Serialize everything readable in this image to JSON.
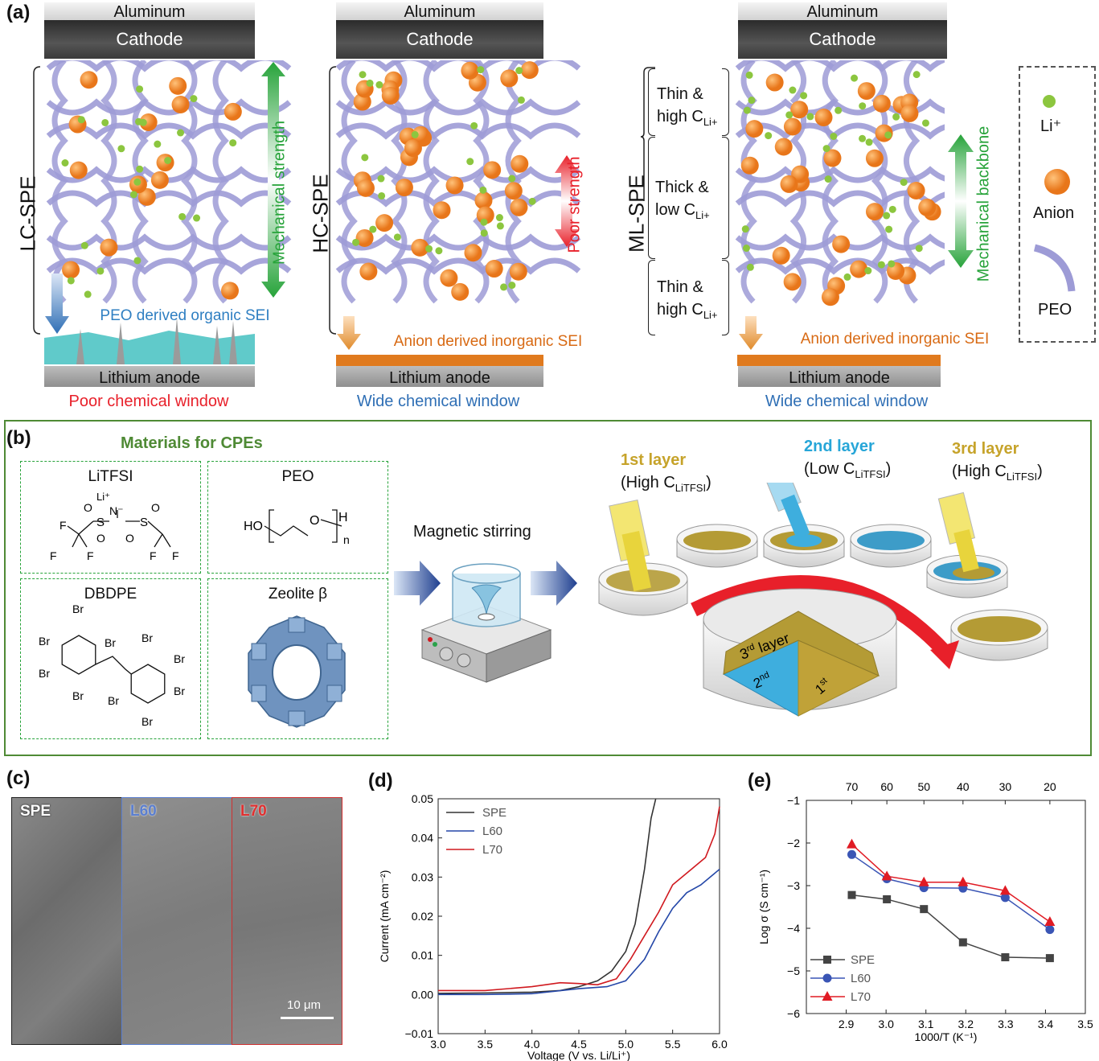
{
  "panel_a": {
    "label": "(a)",
    "columns": [
      {
        "aluminum": "Aluminum",
        "cathode": "Cathode",
        "name": "LC-SPE",
        "arrow_text": "Mechanical strength",
        "sei": "PEO derived organic SEI",
        "anode": "Lithium anode",
        "window": "Poor chemical window"
      },
      {
        "aluminum": "Aluminum",
        "cathode": "Cathode",
        "name": "HC-SPE",
        "arrow_text": "Poor strength",
        "sei": "Anion derived inorganic SEI",
        "anode": "Lithium anode",
        "window": "Wide chemical window"
      },
      {
        "aluminum": "Aluminum",
        "cathode": "Cathode",
        "name": "ML-SPE",
        "arrow_text": "Mechanical backbone",
        "sei": "Anion derived inorganic SEI",
        "anode": "Lithium anode",
        "window": "Wide chemical window",
        "layers": [
          {
            "l1": "Thin &",
            "l2": "high C",
            "sub": "Li+"
          },
          {
            "l1": "Thick &",
            "l2": "low C",
            "sub": "Li+"
          },
          {
            "l1": "Thin &",
            "l2": "high C",
            "sub": "Li+"
          }
        ]
      }
    ],
    "legend": {
      "li": "Li⁺",
      "anion": "Anion",
      "peo": "PEO"
    },
    "colors": {
      "li": "#8cc63f",
      "anion": "#f08a24",
      "peo": "#9d9bd6",
      "green": "#27a33a",
      "red": "#e8202a",
      "blue": "#2f6fb5",
      "orange": "#d86a14"
    }
  },
  "panel_b": {
    "label": "(b)",
    "materials_title": "Materials for CPEs",
    "materials": {
      "litfsi": {
        "name": "LiTFSI",
        "li": "Li⁺",
        "n": "N⁻",
        "s": "S",
        "o": "O",
        "f": "F"
      },
      "peo": {
        "name": "PEO",
        "ho": "HO",
        "o": "O",
        "h": "H",
        "n": "n"
      },
      "dbdpe": {
        "name": "DBDPE",
        "br": "Br"
      },
      "zeolite": {
        "name": "Zeolite β"
      }
    },
    "stirring": "Magnetic stirring",
    "layers": [
      {
        "title": "1st layer",
        "desc1": "(High C",
        "desc_sub": "LiTFSI",
        "desc2": ")"
      },
      {
        "title": "2nd layer",
        "desc1": "(Low C",
        "desc_sub": "LiTFSI",
        "desc2": ")"
      },
      {
        "title": "3rd layer",
        "desc1": "(High C",
        "desc_sub": "LiTFSI",
        "desc2": ")"
      }
    ],
    "dish_labels": {
      "third": "3",
      "third_sup": "rd",
      "third_rest": " layer",
      "second": "2",
      "second_sup": "nd",
      "first": "1",
      "first_sup": "st"
    }
  },
  "panel_c": {
    "label": "(c)",
    "tiles": [
      "SPE",
      "L60",
      "L70"
    ],
    "scale": "10 μm"
  },
  "chart_data": [
    {
      "panel": "(d)",
      "type": "line",
      "xlabel": "Voltage (V vs. Li/Li⁺)",
      "ylabel": "Current (mA cm⁻²)",
      "xlim": [
        3.0,
        6.0
      ],
      "ylim": [
        -0.01,
        0.05
      ],
      "xticks": [
        "3.0",
        "3.5",
        "4.0",
        "4.5",
        "5.0",
        "5.5",
        "6.0"
      ],
      "yticks": [
        "−0.01",
        "0.00",
        "0.01",
        "0.02",
        "0.03",
        "0.04",
        "0.05"
      ],
      "legend_position": "top-left",
      "series": [
        {
          "name": "SPE",
          "color": "#333333",
          "x": [
            3.0,
            3.5,
            4.0,
            4.3,
            4.5,
            4.7,
            4.85,
            5.0,
            5.1,
            5.2,
            5.27,
            5.32
          ],
          "y": [
            0.0003,
            0.0004,
            0.0006,
            0.001,
            0.002,
            0.0035,
            0.006,
            0.011,
            0.018,
            0.032,
            0.045,
            0.05
          ]
        },
        {
          "name": "L60",
          "color": "#2447a8",
          "x": [
            3.0,
            3.5,
            4.0,
            4.5,
            4.8,
            5.0,
            5.2,
            5.35,
            5.5,
            5.65,
            5.8,
            5.9,
            6.0
          ],
          "y": [
            0.0,
            0.0,
            0.0002,
            0.0015,
            0.002,
            0.0035,
            0.009,
            0.016,
            0.022,
            0.026,
            0.028,
            0.03,
            0.032
          ]
        },
        {
          "name": "L70",
          "color": "#d0191f",
          "x": [
            3.0,
            3.5,
            4.0,
            4.3,
            4.5,
            4.7,
            4.9,
            5.05,
            5.2,
            5.35,
            5.5,
            5.7,
            5.85,
            5.95,
            6.0
          ],
          "y": [
            0.001,
            0.001,
            0.002,
            0.003,
            0.0028,
            0.0025,
            0.004,
            0.009,
            0.015,
            0.021,
            0.028,
            0.032,
            0.035,
            0.041,
            0.048
          ]
        }
      ]
    },
    {
      "panel": "(e)",
      "type": "line",
      "xlabel": "1000/T (K⁻¹)",
      "ylabel": "Log σ (S cm⁻¹)",
      "xlim": [
        2.8,
        3.5
      ],
      "ylim": [
        -6,
        -1
      ],
      "xticks": [
        "2.9",
        "3.0",
        "3.1",
        "3.2",
        "3.3",
        "3.4",
        "3.5"
      ],
      "yticks": [
        "−6",
        "−5",
        "−4",
        "−3",
        "−2",
        "−1"
      ],
      "top_axis_ticks": [
        "70",
        "60",
        "50",
        "40",
        "30",
        "20"
      ],
      "top_axis_x": [
        2.914,
        3.002,
        3.095,
        3.193,
        3.299,
        3.411
      ],
      "legend_position": "bottom-left",
      "series": [
        {
          "name": "SPE",
          "color": "#444444",
          "marker": "square",
          "x": [
            2.914,
            3.002,
            3.095,
            3.193,
            3.299,
            3.411
          ],
          "y": [
            -3.22,
            -3.32,
            -3.55,
            -4.33,
            -4.68,
            -4.7
          ]
        },
        {
          "name": "L60",
          "color": "#3a55b5",
          "marker": "circle",
          "x": [
            2.914,
            3.002,
            3.095,
            3.193,
            3.299,
            3.411
          ],
          "y": [
            -2.27,
            -2.84,
            -3.05,
            -3.06,
            -3.28,
            -4.03
          ]
        },
        {
          "name": "L70",
          "color": "#e01b24",
          "marker": "triangle",
          "x": [
            2.914,
            3.002,
            3.095,
            3.193,
            3.299,
            3.411
          ],
          "y": [
            -2.03,
            -2.78,
            -2.92,
            -2.92,
            -3.12,
            -3.85
          ]
        }
      ]
    }
  ]
}
